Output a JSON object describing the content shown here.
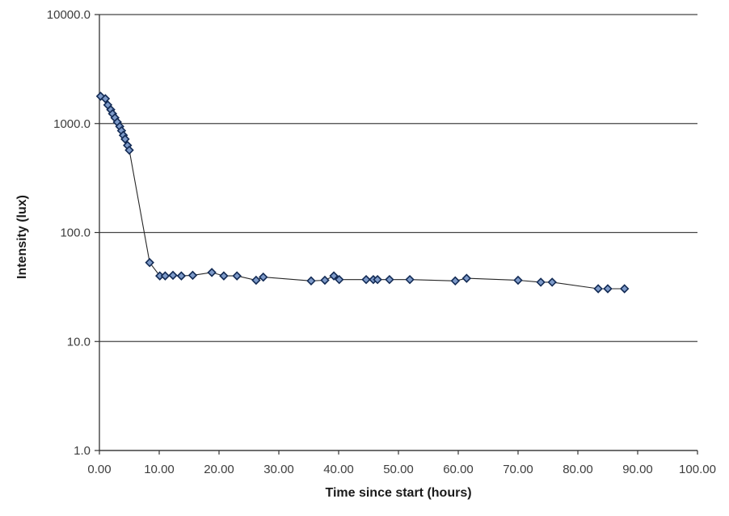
{
  "chart_data": {
    "type": "line",
    "title": "",
    "xlabel": "Time since start (hours)",
    "ylabel": "Intensity (lux)",
    "grid": true,
    "legend": "none",
    "x_axis": {
      "min": 0,
      "max": 100,
      "ticks": [
        {
          "label": "0.00",
          "value": 0
        },
        {
          "label": "10.00",
          "value": 10
        },
        {
          "label": "20.00",
          "value": 20
        },
        {
          "label": "30.00",
          "value": 30
        },
        {
          "label": "40.00",
          "value": 40
        },
        {
          "label": "50.00",
          "value": 50
        },
        {
          "label": "60.00",
          "value": 60
        },
        {
          "label": "70.00",
          "value": 70
        },
        {
          "label": "80.00",
          "value": 80
        },
        {
          "label": "90.00",
          "value": 90
        },
        {
          "label": "100.00",
          "value": 100
        }
      ]
    },
    "y_axis": {
      "scale": "log",
      "min": 1,
      "max": 10000,
      "ticks": [
        {
          "label": "10000.0",
          "value": 10000
        },
        {
          "label": "1000.0",
          "value": 1000
        },
        {
          "label": "100.0",
          "value": 100
        },
        {
          "label": "10.0",
          "value": 10
        },
        {
          "label": "1.0",
          "value": 1
        }
      ]
    },
    "series": [
      {
        "name": "Intensity",
        "marker": "diamond",
        "points": [
          [
            0.2,
            1780
          ],
          [
            1.0,
            1690
          ],
          [
            1.4,
            1480
          ],
          [
            1.9,
            1340
          ],
          [
            2.2,
            1230
          ],
          [
            2.6,
            1130
          ],
          [
            3.0,
            1030
          ],
          [
            3.4,
            940
          ],
          [
            3.7,
            860
          ],
          [
            4.0,
            780
          ],
          [
            4.3,
            720
          ],
          [
            4.7,
            630
          ],
          [
            5.0,
            570
          ],
          [
            8.4,
            53
          ],
          [
            10.1,
            40
          ],
          [
            11.0,
            40
          ],
          [
            12.3,
            40.5
          ],
          [
            13.7,
            40
          ],
          [
            15.6,
            40.5
          ],
          [
            18.8,
            43
          ],
          [
            20.8,
            40
          ],
          [
            23.0,
            40
          ],
          [
            26.2,
            36.5
          ],
          [
            27.4,
            39
          ],
          [
            35.4,
            36
          ],
          [
            37.7,
            36.5
          ],
          [
            39.2,
            40
          ],
          [
            40.1,
            37
          ],
          [
            44.6,
            37
          ],
          [
            45.8,
            37
          ],
          [
            46.5,
            37
          ],
          [
            48.5,
            37
          ],
          [
            51.9,
            37
          ],
          [
            59.5,
            36
          ],
          [
            61.4,
            38
          ],
          [
            70.0,
            36.5
          ],
          [
            73.8,
            35
          ],
          [
            75.7,
            35
          ],
          [
            83.4,
            30.5
          ],
          [
            85.0,
            30.5
          ],
          [
            87.8,
            30.5
          ]
        ]
      }
    ],
    "colors": {
      "background": "#ffffff",
      "gridline": "#444444",
      "axis": "#333333",
      "line": "#262626",
      "marker_fill": "#7d9ac9",
      "marker_border": "#122a54",
      "tick_label": "#3d3d3d",
      "axis_title": "#1a1a1a"
    }
  }
}
